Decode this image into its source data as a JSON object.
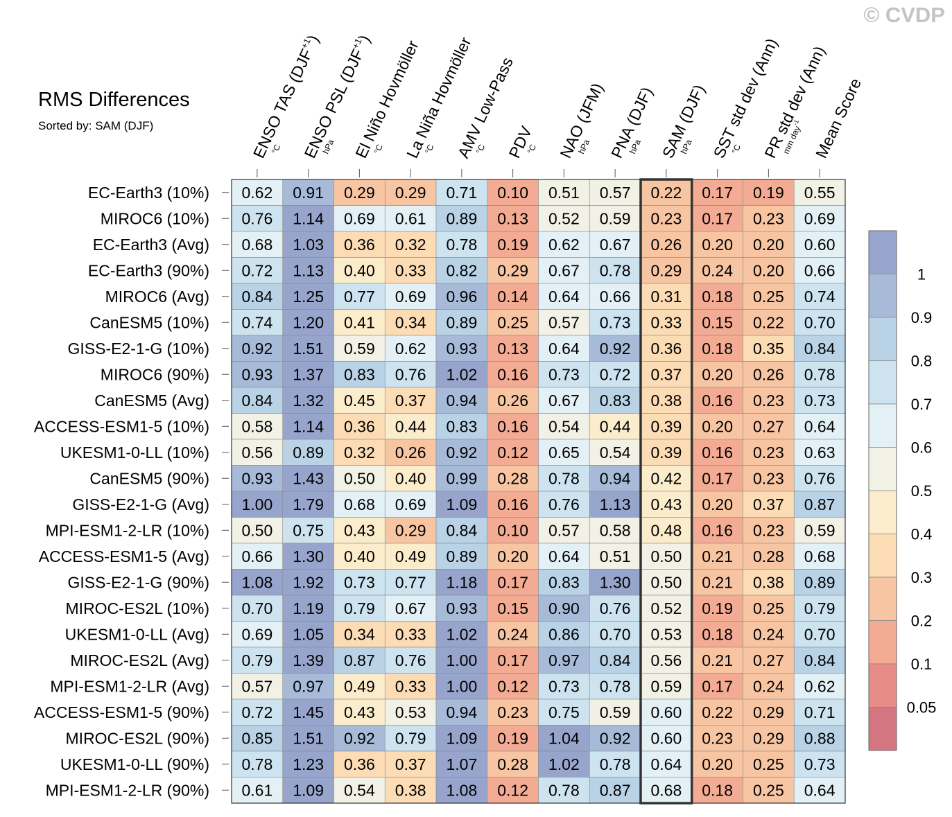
{
  "title": "RMS Differences",
  "subtitle": "Sorted by: SAM (DJF)",
  "watermark": "© CVDP",
  "chart_data": {
    "type": "heatmap",
    "columns": [
      {
        "label": "ENSO TAS (DJF",
        "sup": "+1",
        "close": ")",
        "unit": "°C"
      },
      {
        "label": "ENSO PSL (DJF",
        "sup": "+1",
        "close": ")",
        "unit": "hPa"
      },
      {
        "label": "El Niño Hovmöller",
        "unit": "°C"
      },
      {
        "label": "La Niña Hovmöller",
        "unit": "°C"
      },
      {
        "label": "AMV Low-Pass",
        "unit": "°C"
      },
      {
        "label": "PDV",
        "unit": "°C"
      },
      {
        "label": "NAO (JFM)",
        "unit": "hPa"
      },
      {
        "label": "PNA (DJF)",
        "unit": "hPa"
      },
      {
        "label": "SAM (DJF)",
        "unit": "hPa"
      },
      {
        "label": "SST std dev (Ann)",
        "unit": "°C"
      },
      {
        "label": "PR std dev (Ann)",
        "unit": "mm day",
        "unit_sup": "-1"
      },
      {
        "label": "Mean Score",
        "unit": ""
      }
    ],
    "highlight_column": "SAM (DJF)",
    "rows": [
      {
        "label": "EC-Earth3 (10%)",
        "values": [
          0.62,
          0.91,
          0.29,
          0.29,
          0.71,
          0.1,
          0.51,
          0.57,
          0.22,
          0.17,
          0.19,
          0.55
        ]
      },
      {
        "label": "MIROC6 (10%)",
        "values": [
          0.76,
          1.14,
          0.69,
          0.61,
          0.89,
          0.13,
          0.52,
          0.59,
          0.23,
          0.17,
          0.23,
          0.69
        ]
      },
      {
        "label": "EC-Earth3 (Avg)",
        "values": [
          0.68,
          1.03,
          0.36,
          0.32,
          0.78,
          0.19,
          0.62,
          0.67,
          0.26,
          0.2,
          0.2,
          0.6
        ]
      },
      {
        "label": "EC-Earth3 (90%)",
        "values": [
          0.72,
          1.13,
          0.4,
          0.33,
          0.82,
          0.29,
          0.67,
          0.78,
          0.29,
          0.24,
          0.2,
          0.66
        ]
      },
      {
        "label": "MIROC6 (Avg)",
        "values": [
          0.84,
          1.25,
          0.77,
          0.69,
          0.96,
          0.14,
          0.64,
          0.66,
          0.31,
          0.18,
          0.25,
          0.74
        ]
      },
      {
        "label": "CanESM5 (10%)",
        "values": [
          0.74,
          1.2,
          0.41,
          0.34,
          0.89,
          0.25,
          0.57,
          0.73,
          0.33,
          0.15,
          0.22,
          0.7
        ]
      },
      {
        "label": "GISS-E2-1-G (10%)",
        "values": [
          0.92,
          1.51,
          0.59,
          0.62,
          0.93,
          0.13,
          0.64,
          0.92,
          0.36,
          0.18,
          0.35,
          0.84
        ]
      },
      {
        "label": "MIROC6 (90%)",
        "values": [
          0.93,
          1.37,
          0.83,
          0.76,
          1.02,
          0.16,
          0.73,
          0.72,
          0.37,
          0.2,
          0.26,
          0.78
        ]
      },
      {
        "label": "CanESM5 (Avg)",
        "values": [
          0.84,
          1.32,
          0.45,
          0.37,
          0.94,
          0.26,
          0.67,
          0.83,
          0.38,
          0.16,
          0.23,
          0.73
        ]
      },
      {
        "label": "ACCESS-ESM1-5 (10%)",
        "values": [
          0.58,
          1.14,
          0.36,
          0.44,
          0.83,
          0.16,
          0.54,
          0.44,
          0.39,
          0.2,
          0.27,
          0.64
        ]
      },
      {
        "label": "UKESM1-0-LL (10%)",
        "values": [
          0.56,
          0.89,
          0.32,
          0.26,
          0.92,
          0.12,
          0.65,
          0.54,
          0.39,
          0.16,
          0.23,
          0.63
        ]
      },
      {
        "label": "CanESM5 (90%)",
        "values": [
          0.93,
          1.43,
          0.5,
          0.4,
          0.99,
          0.28,
          0.78,
          0.94,
          0.42,
          0.17,
          0.23,
          0.76
        ]
      },
      {
        "label": "GISS-E2-1-G (Avg)",
        "values": [
          1.0,
          1.79,
          0.68,
          0.69,
          1.09,
          0.16,
          0.76,
          1.13,
          0.43,
          0.2,
          0.37,
          0.87
        ]
      },
      {
        "label": "MPI-ESM1-2-LR (10%)",
        "values": [
          0.5,
          0.75,
          0.43,
          0.29,
          0.84,
          0.1,
          0.57,
          0.58,
          0.48,
          0.16,
          0.23,
          0.59
        ]
      },
      {
        "label": "ACCESS-ESM1-5 (Avg)",
        "values": [
          0.66,
          1.3,
          0.4,
          0.49,
          0.89,
          0.2,
          0.64,
          0.51,
          0.5,
          0.21,
          0.28,
          0.68
        ]
      },
      {
        "label": "GISS-E2-1-G (90%)",
        "values": [
          1.08,
          1.92,
          0.73,
          0.77,
          1.18,
          0.17,
          0.83,
          1.3,
          0.5,
          0.21,
          0.38,
          0.89
        ]
      },
      {
        "label": "MIROC-ES2L (10%)",
        "values": [
          0.7,
          1.19,
          0.79,
          0.67,
          0.93,
          0.15,
          0.9,
          0.76,
          0.52,
          0.19,
          0.25,
          0.79
        ]
      },
      {
        "label": "UKESM1-0-LL (Avg)",
        "values": [
          0.69,
          1.05,
          0.34,
          0.33,
          1.02,
          0.24,
          0.86,
          0.7,
          0.53,
          0.18,
          0.24,
          0.7
        ]
      },
      {
        "label": "MIROC-ES2L (Avg)",
        "values": [
          0.79,
          1.39,
          0.87,
          0.76,
          1.0,
          0.17,
          0.97,
          0.84,
          0.56,
          0.21,
          0.27,
          0.84
        ]
      },
      {
        "label": "MPI-ESM1-2-LR (Avg)",
        "values": [
          0.57,
          0.97,
          0.49,
          0.33,
          1.0,
          0.12,
          0.73,
          0.78,
          0.59,
          0.17,
          0.24,
          0.62
        ]
      },
      {
        "label": "ACCESS-ESM1-5 (90%)",
        "values": [
          0.72,
          1.45,
          0.43,
          0.53,
          0.94,
          0.23,
          0.75,
          0.59,
          0.6,
          0.22,
          0.29,
          0.71
        ]
      },
      {
        "label": "MIROC-ES2L (90%)",
        "values": [
          0.85,
          1.51,
          0.92,
          0.79,
          1.09,
          0.19,
          1.04,
          0.92,
          0.6,
          0.23,
          0.29,
          0.88
        ]
      },
      {
        "label": "UKESM1-0-LL (90%)",
        "values": [
          0.78,
          1.23,
          0.36,
          0.37,
          1.07,
          0.28,
          1.02,
          0.78,
          0.64,
          0.2,
          0.25,
          0.73
        ]
      },
      {
        "label": "MPI-ESM1-2-LR (90%)",
        "values": [
          0.61,
          1.09,
          0.54,
          0.38,
          1.08,
          0.12,
          0.78,
          0.87,
          0.68,
          0.18,
          0.25,
          0.64
        ]
      }
    ],
    "colorbar": {
      "levels": [
        "1",
        "0.9",
        "0.8",
        "0.7",
        "0.6",
        "0.5",
        "0.4",
        "0.3",
        "0.2",
        "0.1",
        "0.05"
      ],
      "bins_top_to_bottom": [
        "#97a5cc",
        "#a7bbd9",
        "#b9d2e6",
        "#cde3ef",
        "#e3f0f5",
        "#f2f1e6",
        "#fbedcc",
        "#fcdcb5",
        "#f8c5a3",
        "#f3ab94",
        "#e68d88",
        "#d47582"
      ]
    }
  }
}
